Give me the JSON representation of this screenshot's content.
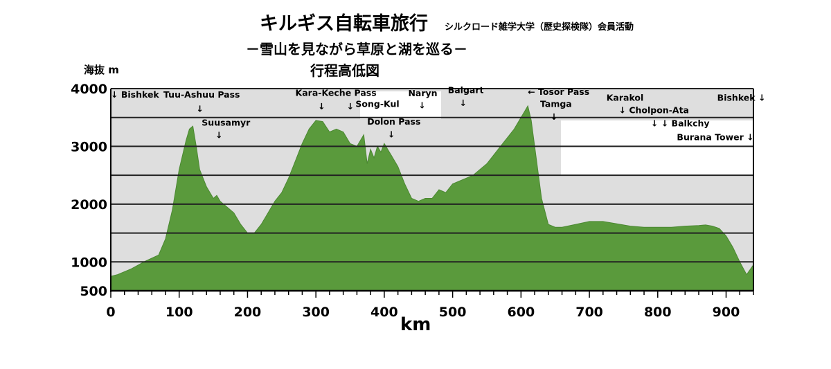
{
  "chart_data": {
    "type": "area",
    "title": "キルギス自転車旅行",
    "title_org": "シルクロード雑学大学（歴史探検隊）会員活動",
    "subtitle": "－雪山を見ながら草原と湖を巡る－",
    "subtitle2": "行程高低図",
    "ylabel": "海抜 m",
    "xlabel": "km",
    "xlim": [
      0,
      940
    ],
    "ylim": [
      500,
      4000
    ],
    "yticks": [
      4000,
      3000,
      2000,
      1000,
      500
    ],
    "xticks": [
      0,
      100,
      200,
      300,
      400,
      500,
      600,
      700,
      800,
      900
    ],
    "grid_y": [
      1500,
      2500,
      3500
    ],
    "grid": true,
    "fill_color": "#5a9a3c",
    "background_color": "#dedede",
    "x": [
      0,
      10,
      30,
      50,
      70,
      80,
      90,
      100,
      110,
      115,
      120,
      125,
      130,
      140,
      150,
      155,
      160,
      170,
      180,
      190,
      200,
      210,
      220,
      230,
      240,
      250,
      260,
      270,
      280,
      290,
      300,
      310,
      320,
      330,
      340,
      350,
      360,
      370,
      375,
      380,
      385,
      390,
      395,
      400,
      405,
      410,
      420,
      430,
      440,
      450,
      460,
      470,
      480,
      490,
      500,
      510,
      520,
      530,
      540,
      550,
      560,
      570,
      580,
      590,
      600,
      605,
      610,
      615,
      620,
      630,
      640,
      650,
      660,
      680,
      700,
      720,
      740,
      760,
      780,
      800,
      820,
      840,
      860,
      870,
      880,
      890,
      900,
      910,
      920,
      930,
      940
    ],
    "y": [
      750,
      780,
      880,
      1010,
      1120,
      1400,
      1900,
      2600,
      3100,
      3300,
      3350,
      3000,
      2600,
      2300,
      2100,
      2150,
      2050,
      1950,
      1850,
      1650,
      1500,
      1500,
      1650,
      1850,
      2050,
      2200,
      2450,
      2750,
      3050,
      3300,
      3450,
      3430,
      3250,
      3300,
      3250,
      3050,
      3000,
      3200,
      2700,
      2950,
      2800,
      3000,
      2900,
      3050,
      2950,
      2850,
      2650,
      2350,
      2100,
      2050,
      2100,
      2100,
      2250,
      2200,
      2350,
      2400,
      2450,
      2500,
      2600,
      2700,
      2850,
      3000,
      3150,
      3300,
      3500,
      3600,
      3700,
      3450,
      3000,
      2100,
      1650,
      1600,
      1600,
      1650,
      1700,
      1700,
      1660,
      1620,
      1600,
      1600,
      1600,
      1620,
      1630,
      1640,
      1620,
      1580,
      1450,
      1250,
      1000,
      780,
      950
    ],
    "annotations": [
      {
        "text": "↓ Bishkek",
        "x": 0,
        "alt": 3845
      },
      {
        "text": "Tuu-Ashuu Pass",
        "x": 77,
        "alt": 3845
      },
      {
        "text": "↓",
        "x": 125,
        "alt": 3600
      },
      {
        "text": "Suusamyr",
        "x": 133,
        "alt": 3360
      },
      {
        "text": "↓",
        "x": 153,
        "alt": 3140
      },
      {
        "text": "Kara-Keche Pass",
        "x": 270,
        "alt": 3875
      },
      {
        "text": "↓",
        "x": 303,
        "alt": 3640
      },
      {
        "text": "↓",
        "x": 345,
        "alt": 3640
      },
      {
        "text": "Song-Kul",
        "x": 358,
        "alt": 3680
      },
      {
        "text": "Naryn",
        "x": 435,
        "alt": 3870
      },
      {
        "text": "↓",
        "x": 450,
        "alt": 3660
      },
      {
        "text": "Balgart",
        "x": 493,
        "alt": 3920
      },
      {
        "text": "↓",
        "x": 510,
        "alt": 3700
      },
      {
        "text": "Dolon Pass",
        "x": 375,
        "alt": 3375
      },
      {
        "text": "↓",
        "x": 405,
        "alt": 3155
      },
      {
        "text": "← Tosor Pass",
        "x": 610,
        "alt": 3890
      },
      {
        "text": "Tamga",
        "x": 628,
        "alt": 3680
      },
      {
        "text": "↓",
        "x": 643,
        "alt": 3460
      },
      {
        "text": "Karakol",
        "x": 725,
        "alt": 3790
      },
      {
        "text": "↓ Cholpon-Ata",
        "x": 743,
        "alt": 3575
      },
      {
        "text": "↓ ↓ Balkchy",
        "x": 790,
        "alt": 3345
      },
      {
        "text": "Burana Tower ↓",
        "x": 828,
        "alt": 3105
      },
      {
        "text": "Bishkek ↓",
        "x": 887,
        "alt": 3790
      }
    ]
  }
}
